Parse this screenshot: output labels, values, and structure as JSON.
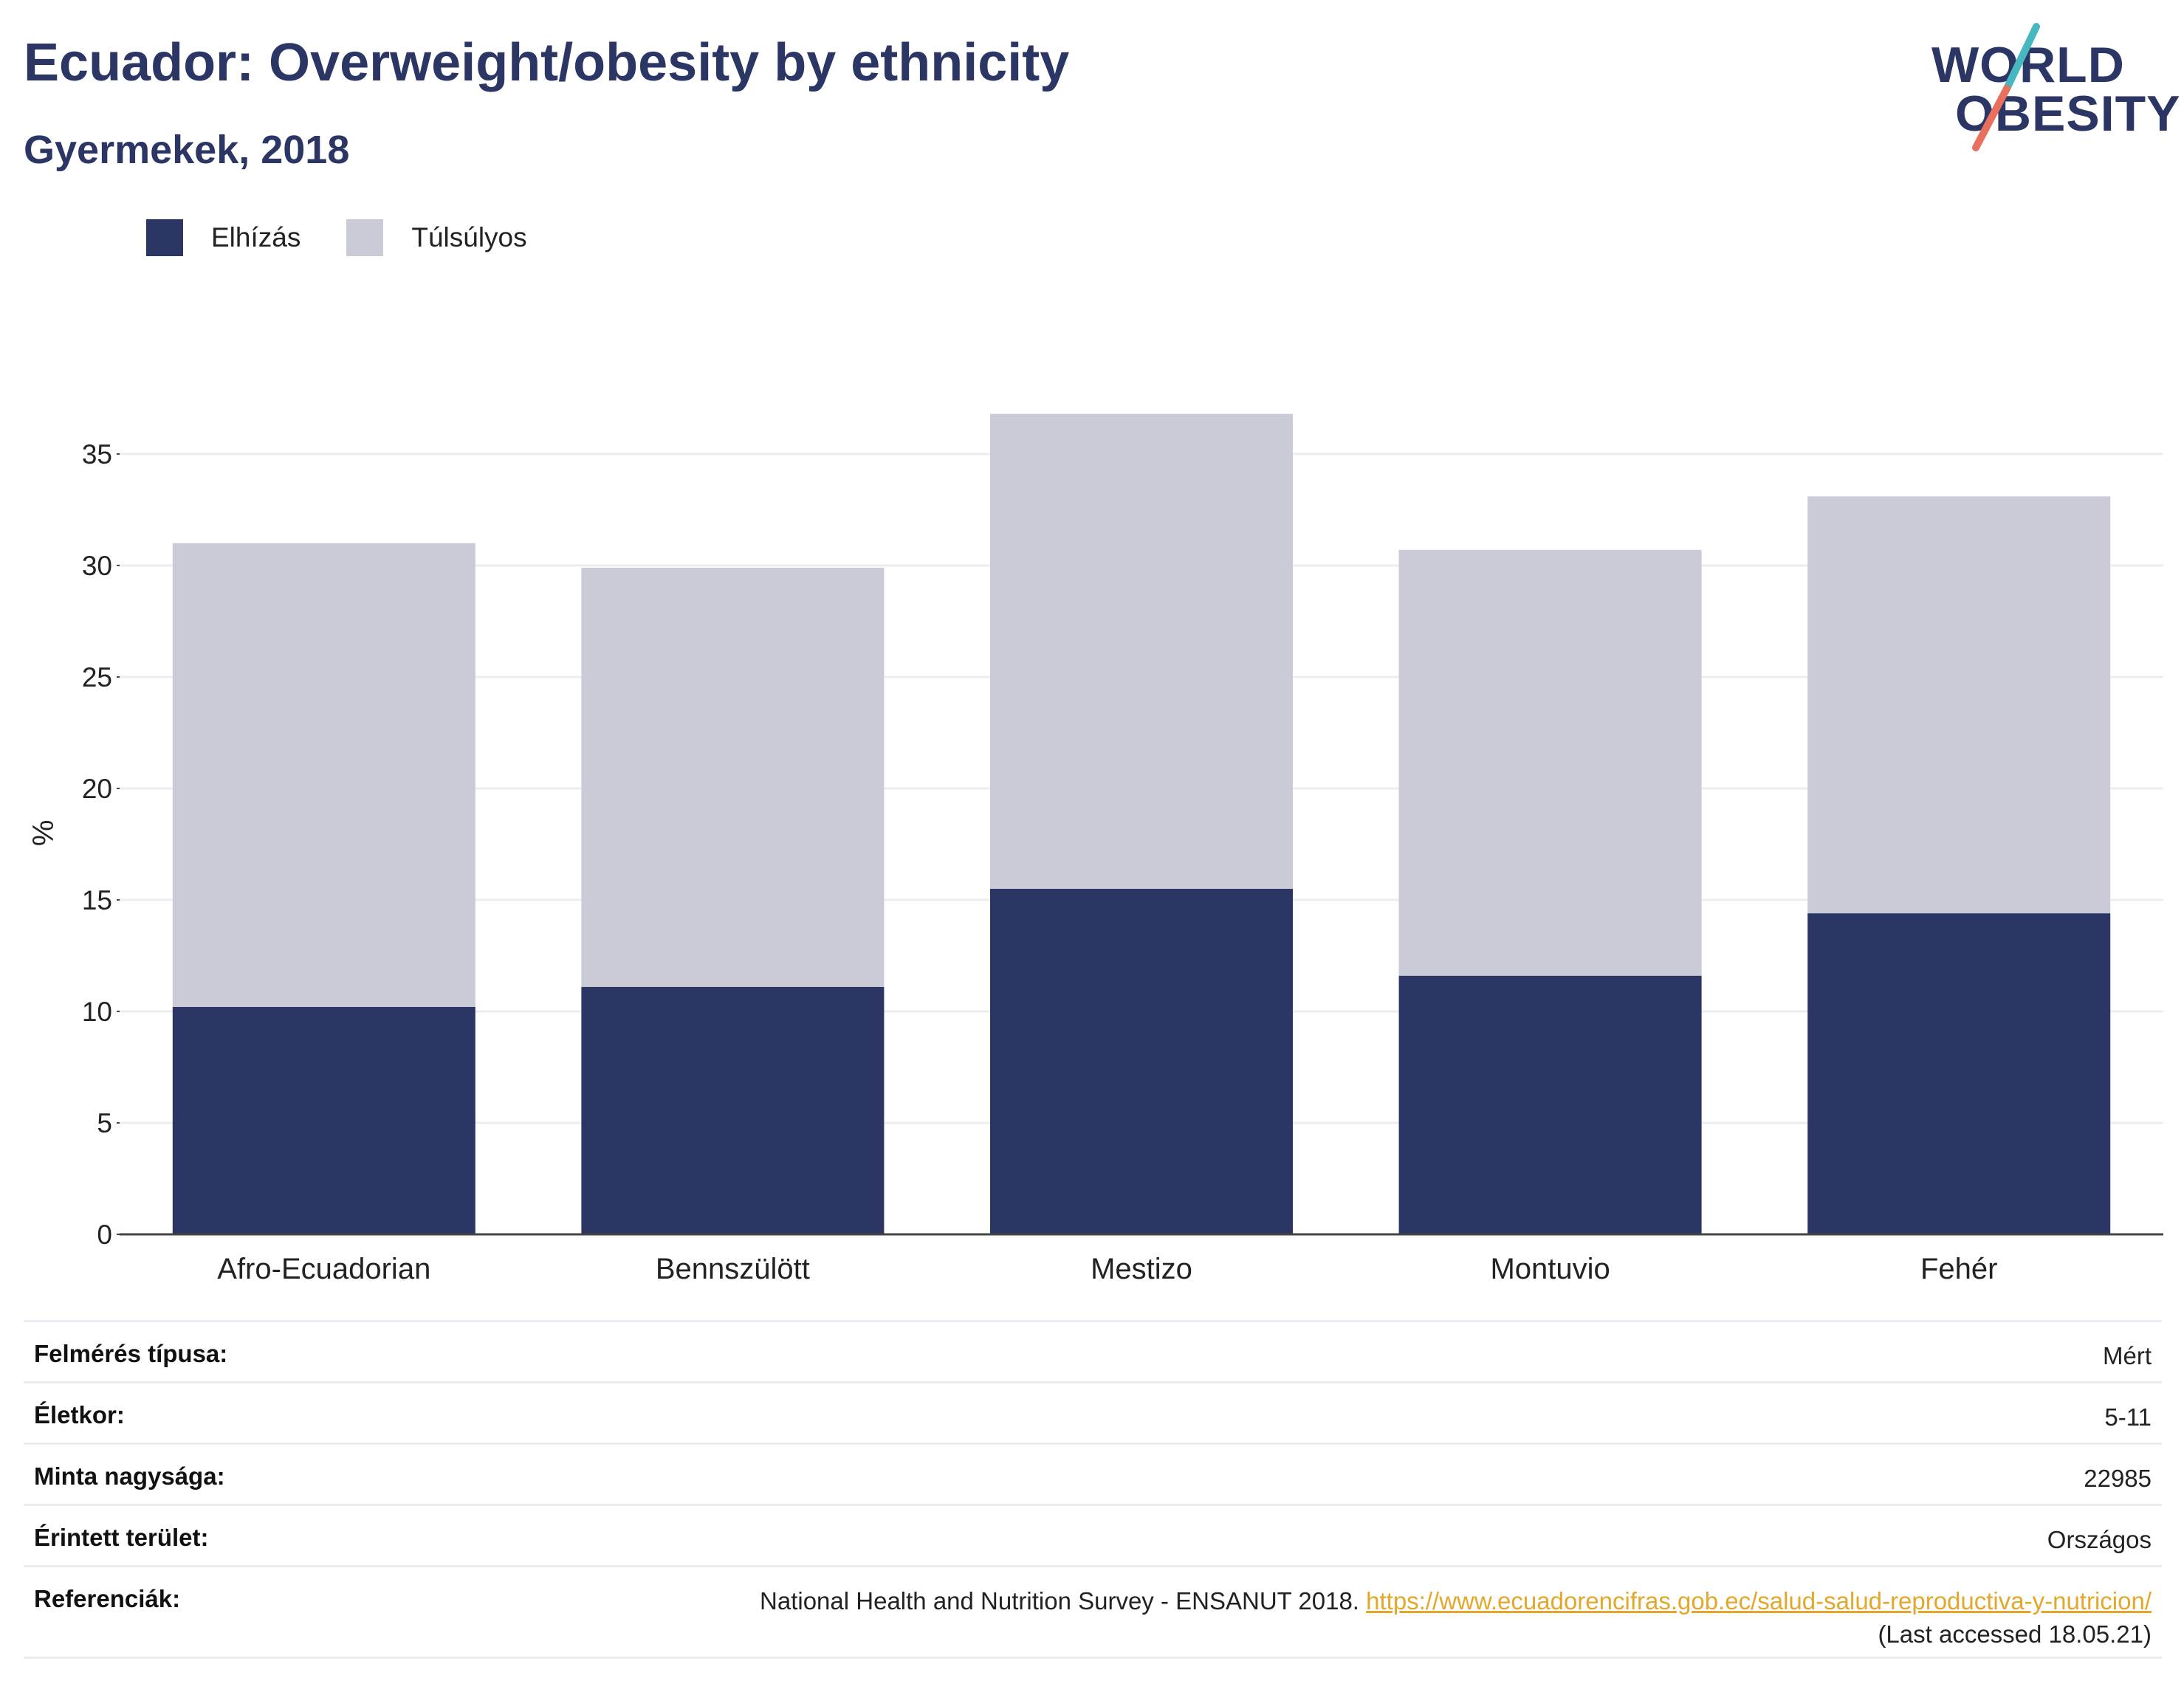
{
  "header": {
    "title": "Ecuador: Overweight/obesity by ethnicity",
    "subtitle": "Gyermekek, 2018"
  },
  "logo": {
    "line1": "WORLD",
    "line2": "OBESITY",
    "slash_colors": [
      "#47b8c0",
      "#e8705e"
    ]
  },
  "legend": [
    {
      "label": "Elhízás",
      "color": "#2b3664"
    },
    {
      "label": "Túlsúlyos",
      "color": "#cacbd6"
    }
  ],
  "chart_data": {
    "type": "bar",
    "stacked": true,
    "categories": [
      "Afro-Ecuadorian",
      "Bennszülött",
      "Mestizo",
      "Montuvio",
      "Fehér"
    ],
    "series": [
      {
        "name": "Elhízás",
        "color": "#2b3664",
        "values": [
          10.2,
          11.1,
          15.5,
          11.6,
          14.4
        ]
      },
      {
        "name": "Túlsúlyos",
        "color": "#cacbd6",
        "values": [
          20.8,
          18.8,
          21.3,
          19.1,
          18.7
        ]
      }
    ],
    "ylabel": "%",
    "xlabel": "",
    "ylim": [
      0,
      37
    ],
    "yticks": [
      0,
      5,
      10,
      15,
      20,
      25,
      30,
      35
    ],
    "grid": true,
    "legend_position": "top-left"
  },
  "info": [
    {
      "key": "Felmérés típusa:",
      "value": "Mért"
    },
    {
      "key": "Életkor:",
      "value": "5-11"
    },
    {
      "key": "Minta nagysága:",
      "value": "22985"
    },
    {
      "key": "Érintett terület:",
      "value": "Országos"
    }
  ],
  "reference": {
    "key": "Referenciák:",
    "text": "National Health and Nutrition Survey - ENSANUT 2018.",
    "link": "https://www.ecuadorencifras.gob.ec/salud-salud-reproductiva-y-nutricion/",
    "accessed": "(Last accessed 18.05.21)"
  }
}
